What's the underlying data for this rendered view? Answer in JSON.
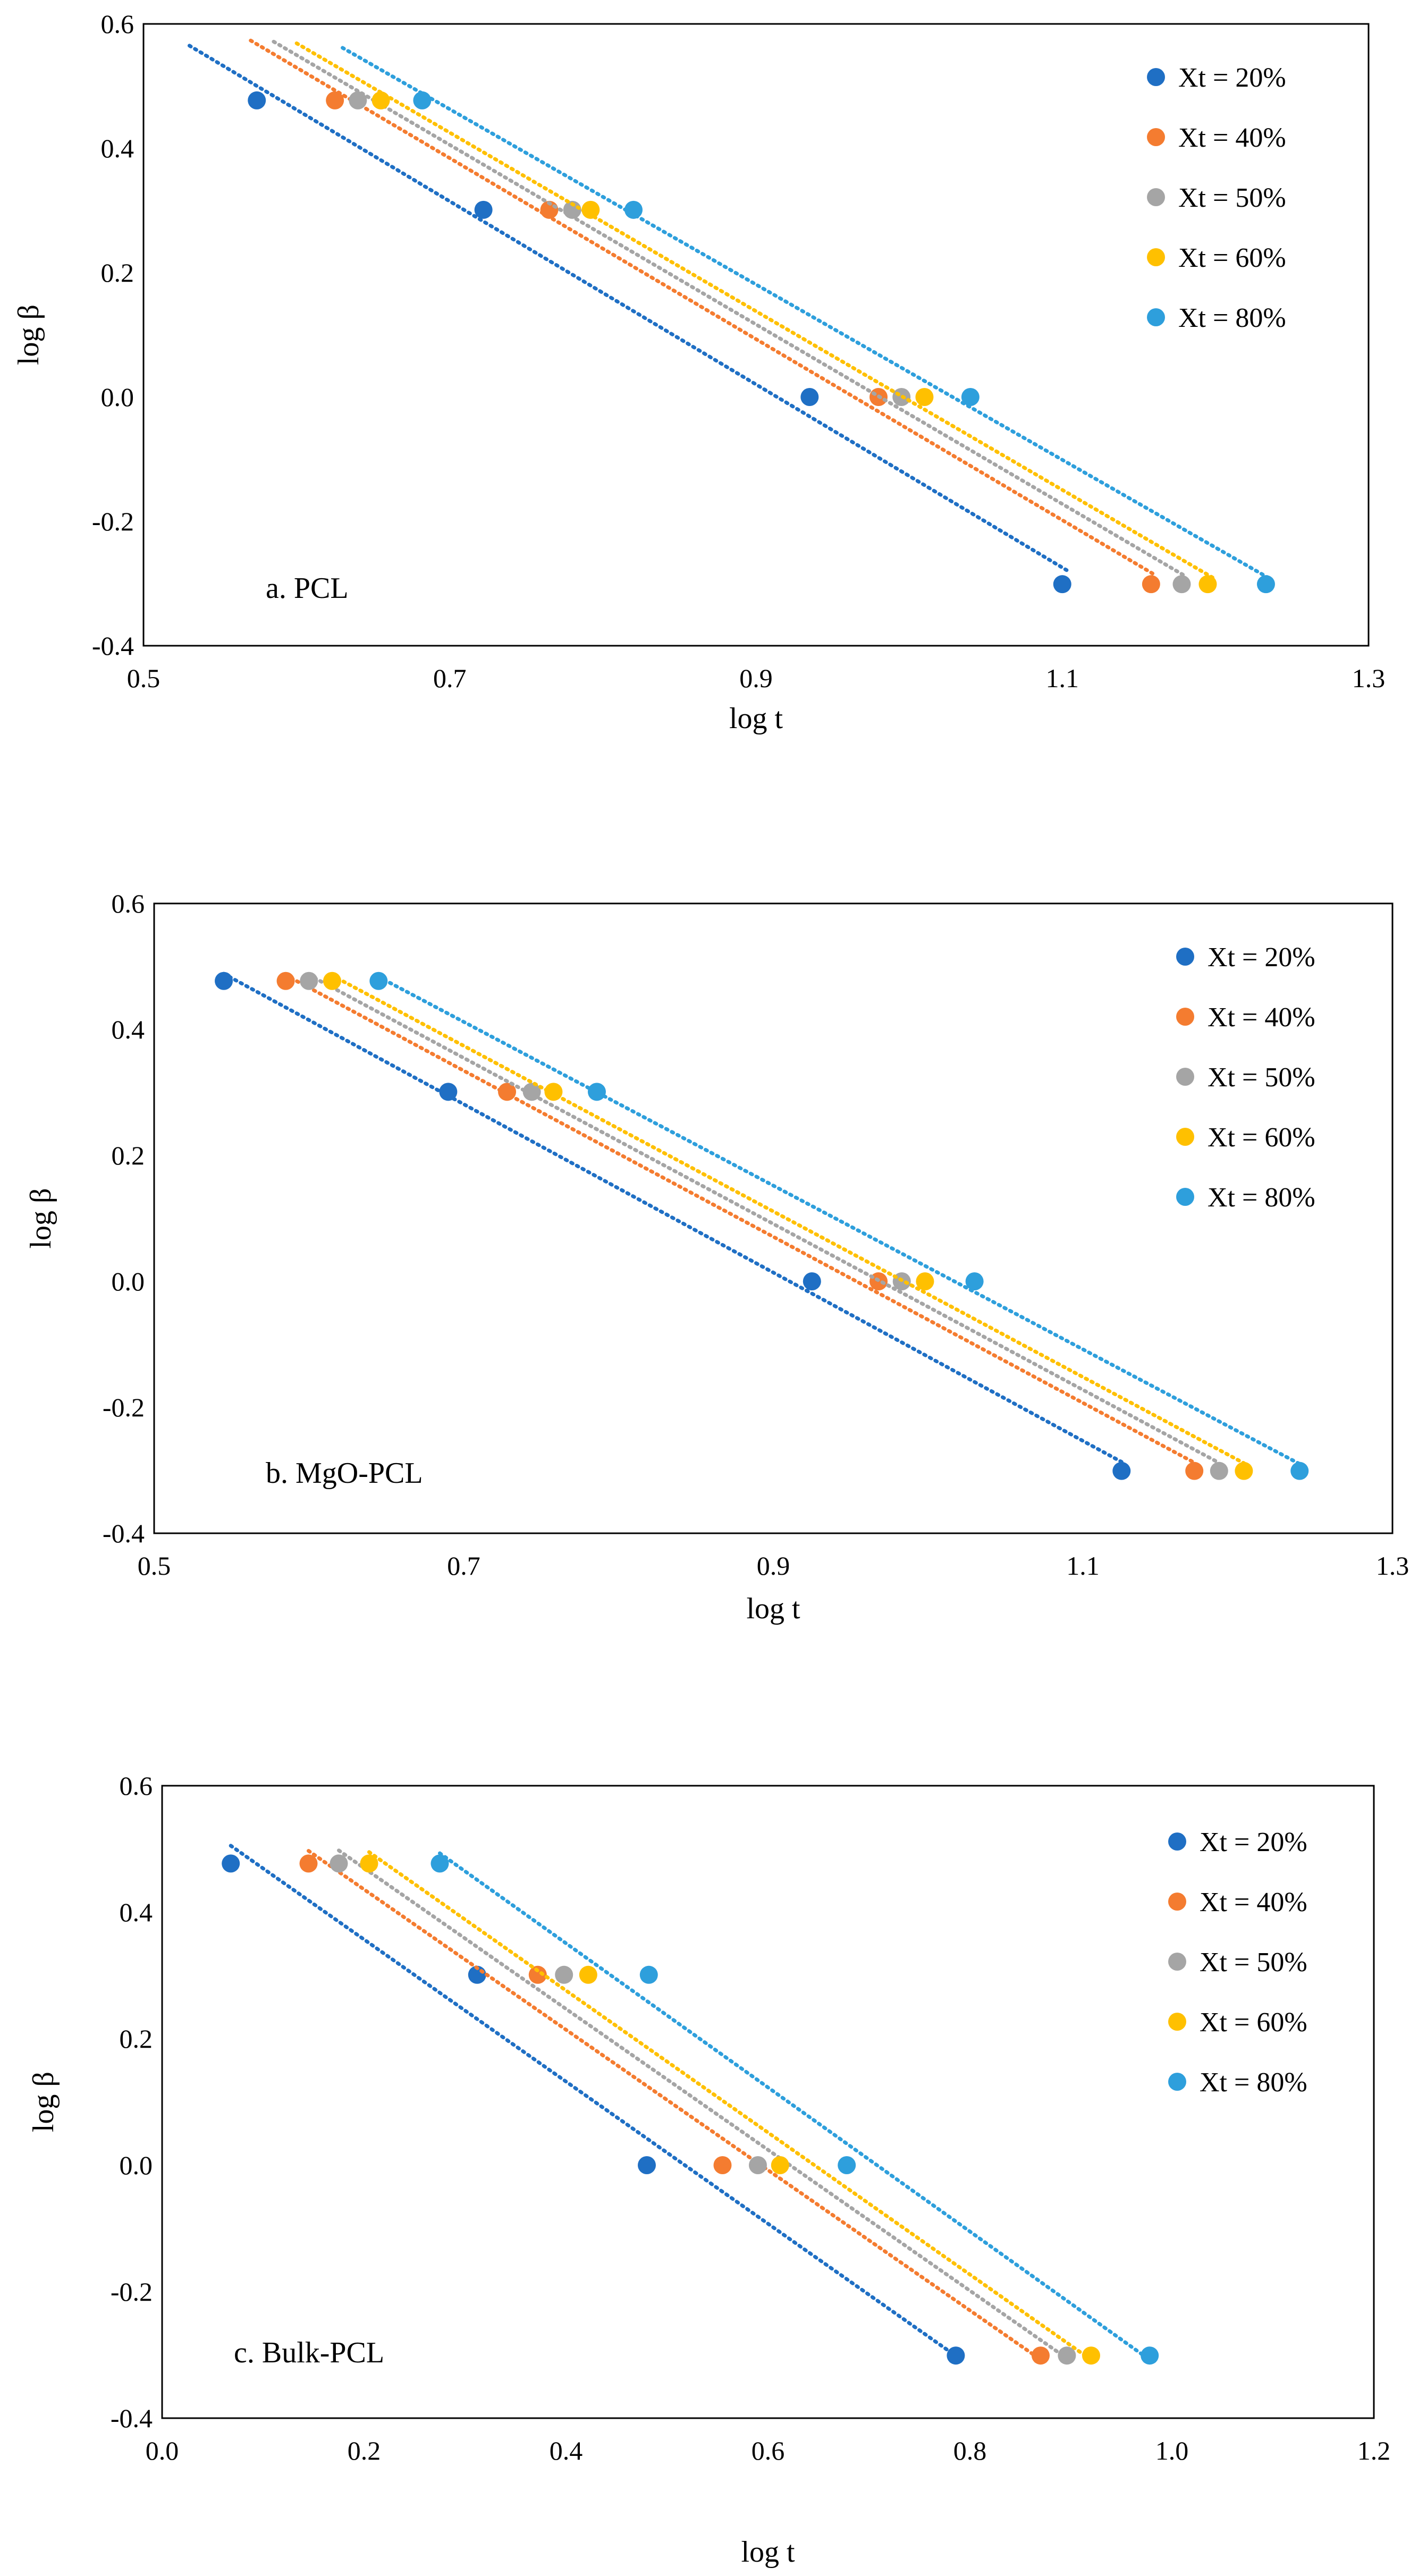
{
  "series_colors": [
    "#1f6fc4",
    "#f47c30",
    "#a5a5a5",
    "#ffc000",
    "#2e9fdc"
  ],
  "chart_data": [
    {
      "type": "scatter",
      "title": "a. PCL",
      "xlabel": "log t",
      "ylabel": "log β",
      "xlim": [
        0.5,
        1.3
      ],
      "ylim": [
        -0.4,
        0.6
      ],
      "xticks": [
        "0.5",
        "0.7",
        "0.9",
        "1.1",
        "1.3"
      ],
      "yticks": [
        "-0.4",
        "-0.2",
        "0.0",
        "0.2",
        "0.4",
        "0.6"
      ],
      "grid": false,
      "legend_position": "top-right",
      "trendline": "linear",
      "series": [
        {
          "name": "Xt = 20%",
          "x": [
            0.574,
            0.722,
            0.935,
            1.1
          ],
          "y": [
            0.477,
            0.301,
            0.0,
            -0.301
          ],
          "trend_x": [
            0.53,
            1.105
          ]
        },
        {
          "name": "Xt = 40%",
          "x": [
            0.625,
            0.765,
            0.98,
            1.158
          ],
          "y": [
            0.477,
            0.301,
            0.0,
            -0.301
          ],
          "trend_x": [
            0.57,
            1.16
          ]
        },
        {
          "name": "Xt = 50%",
          "x": [
            0.64,
            0.78,
            0.995,
            1.178
          ],
          "y": [
            0.477,
            0.301,
            0.0,
            -0.301
          ],
          "trend_x": [
            0.585,
            1.18
          ]
        },
        {
          "name": "Xt = 60%",
          "x": [
            0.655,
            0.792,
            1.01,
            1.195
          ],
          "y": [
            0.477,
            0.301,
            0.0,
            -0.301
          ],
          "trend_x": [
            0.6,
            1.2
          ]
        },
        {
          "name": "Xt = 80%",
          "x": [
            0.682,
            0.82,
            1.04,
            1.233
          ],
          "y": [
            0.477,
            0.301,
            0.0,
            -0.301
          ],
          "trend_x": [
            0.63,
            1.235
          ]
        }
      ]
    },
    {
      "type": "scatter",
      "title": "b. MgO-PCL",
      "xlabel": "log t",
      "ylabel": "log β",
      "xlim": [
        0.5,
        1.3
      ],
      "ylim": [
        -0.4,
        0.6
      ],
      "xticks": [
        "0.5",
        "0.7",
        "0.9",
        "1.1",
        "1.3"
      ],
      "yticks": [
        "-0.4",
        "-0.2",
        "0.0",
        "0.2",
        "0.4",
        "0.6"
      ],
      "grid": false,
      "legend_position": "top-right",
      "trendline": "linear",
      "series": [
        {
          "name": "Xt = 20%",
          "x": [
            0.545,
            0.69,
            0.925,
            1.125
          ],
          "y": [
            0.477,
            0.301,
            0.0,
            -0.301
          ],
          "trend_x": [
            0.545,
            1.125
          ]
        },
        {
          "name": "Xt = 40%",
          "x": [
            0.585,
            0.728,
            0.968,
            1.172
          ],
          "y": [
            0.477,
            0.301,
            0.0,
            -0.301
          ],
          "trend_x": [
            0.585,
            1.172
          ]
        },
        {
          "name": "Xt = 50%",
          "x": [
            0.6,
            0.744,
            0.983,
            1.188
          ],
          "y": [
            0.477,
            0.301,
            0.0,
            -0.301
          ],
          "trend_x": [
            0.6,
            1.188
          ]
        },
        {
          "name": "Xt = 60%",
          "x": [
            0.615,
            0.758,
            0.998,
            1.204
          ],
          "y": [
            0.477,
            0.301,
            0.0,
            -0.301
          ],
          "trend_x": [
            0.615,
            1.204
          ]
        },
        {
          "name": "Xt = 80%",
          "x": [
            0.645,
            0.786,
            1.03,
            1.24
          ],
          "y": [
            0.477,
            0.301,
            0.0,
            -0.301
          ],
          "trend_x": [
            0.645,
            1.24
          ]
        }
      ]
    },
    {
      "type": "scatter",
      "title": "c. Bulk-PCL",
      "xlabel": "log t",
      "ylabel": "log β",
      "xlim": [
        0.0,
        1.2
      ],
      "ylim": [
        -0.4,
        0.6
      ],
      "xticks": [
        "0.0",
        "0.2",
        "0.4",
        "0.6",
        "0.8",
        "1.0",
        "1.2"
      ],
      "yticks": [
        "-0.4",
        "-0.2",
        "0.0",
        "0.2",
        "0.4",
        "0.6"
      ],
      "grid": false,
      "legend_position": "top-right",
      "trendline": "linear",
      "series": [
        {
          "name": "Xt = 20%",
          "x": [
            0.068,
            0.312,
            0.48,
            0.786
          ],
          "y": [
            0.477,
            0.301,
            0.0,
            -0.301
          ],
          "trend_x": [
            0.068,
            0.786
          ]
        },
        {
          "name": "Xt = 40%",
          "x": [
            0.145,
            0.372,
            0.555,
            0.87
          ],
          "y": [
            0.477,
            0.301,
            0.0,
            -0.301
          ],
          "trend_x": [
            0.145,
            0.87
          ]
        },
        {
          "name": "Xt = 50%",
          "x": [
            0.175,
            0.398,
            0.59,
            0.896
          ],
          "y": [
            0.477,
            0.301,
            0.0,
            -0.301
          ],
          "trend_x": [
            0.175,
            0.896
          ]
        },
        {
          "name": "Xt = 60%",
          "x": [
            0.205,
            0.422,
            0.612,
            0.92
          ],
          "y": [
            0.477,
            0.301,
            0.0,
            -0.301
          ],
          "trend_x": [
            0.205,
            0.92
          ]
        },
        {
          "name": "Xt = 80%",
          "x": [
            0.275,
            0.482,
            0.678,
            0.978
          ],
          "y": [
            0.477,
            0.301,
            0.0,
            -0.301
          ],
          "trend_x": [
            0.275,
            0.978
          ]
        }
      ]
    }
  ]
}
